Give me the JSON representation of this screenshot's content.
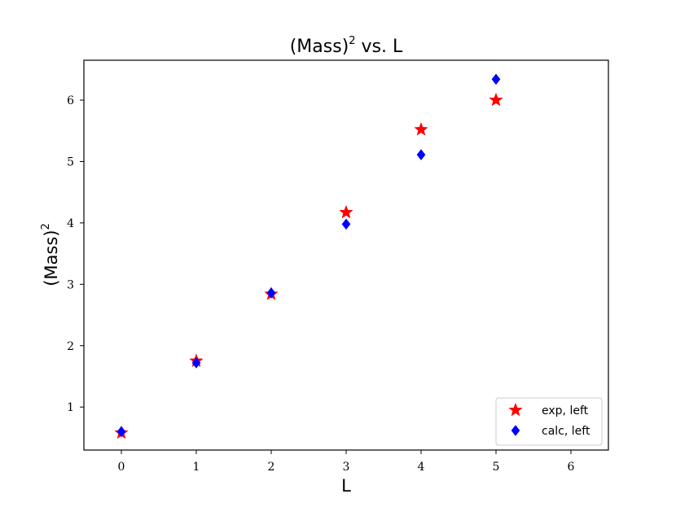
{
  "chart_data": {
    "type": "scatter",
    "title": "(Mass)² vs. L",
    "title_main": "(Mass)",
    "title_sup": "2",
    "title_tail": " vs.  L",
    "xlabel": "L",
    "ylabel_main": "(Mass)",
    "ylabel_sup": "2",
    "xlim": [
      -0.5,
      6.5
    ],
    "ylim": [
      0.3,
      6.65
    ],
    "xticks": [
      0,
      1,
      2,
      3,
      4,
      5,
      6
    ],
    "yticks": [
      1,
      2,
      3,
      4,
      5,
      6
    ],
    "grid": false,
    "legend_position": "lower right",
    "series": [
      {
        "name": "exp, left",
        "marker": "star",
        "color": "#ff0000",
        "x": [
          0,
          1,
          2,
          3,
          4,
          5
        ],
        "y": [
          0.58,
          1.75,
          2.84,
          4.17,
          5.52,
          6.0
        ]
      },
      {
        "name": "calc, left",
        "marker": "diamond",
        "color": "#0000ff",
        "x": [
          0,
          1,
          2,
          3,
          4,
          5
        ],
        "y": [
          0.6,
          1.72,
          2.86,
          3.98,
          5.11,
          6.34
        ]
      }
    ]
  }
}
